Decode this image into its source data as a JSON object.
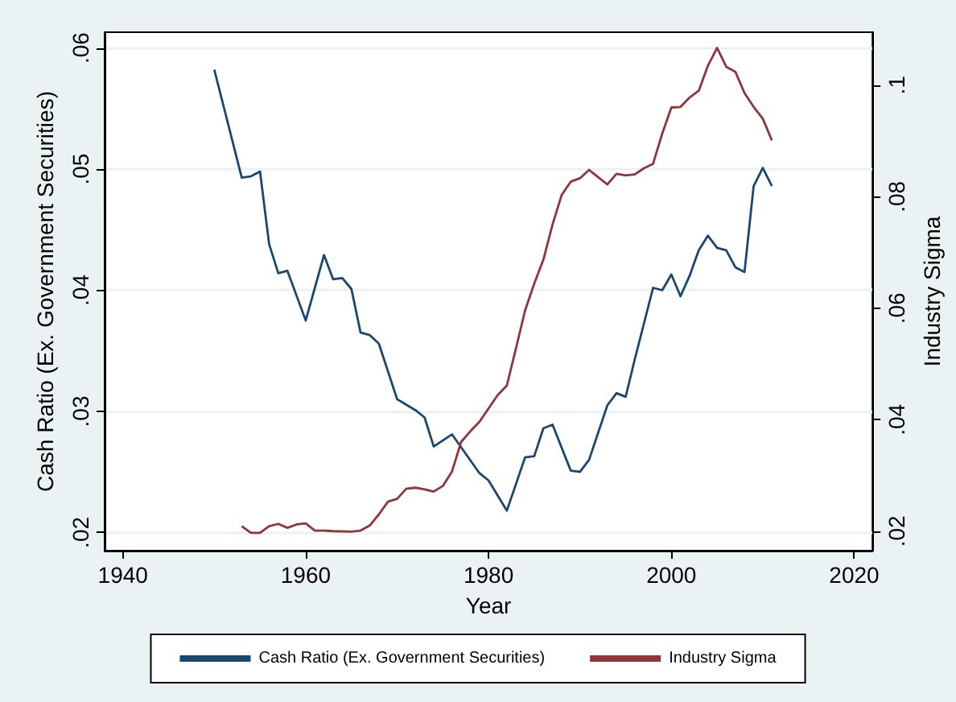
{
  "chart_data": {
    "type": "line",
    "xlabel": "Year",
    "ylabel": "Cash Ratio (Ex. Government Securities)",
    "y2label": "Industry Sigma",
    "xlim": [
      1938,
      2022
    ],
    "xticks": [
      1940,
      1960,
      1980,
      2000,
      2020
    ],
    "ylim": [
      0.0185,
      0.0613
    ],
    "yticks": [
      {
        "value": 0.02,
        "label": ".02"
      },
      {
        "value": 0.03,
        "label": ".03"
      },
      {
        "value": 0.04,
        "label": ".04"
      },
      {
        "value": 0.05,
        "label": ".05"
      },
      {
        "value": 0.06,
        "label": ".06"
      }
    ],
    "y2lim": [
      0.0165,
      0.1095
    ],
    "y2ticks": [
      {
        "value": 0.02,
        "label": ".02"
      },
      {
        "value": 0.04,
        "label": ".04"
      },
      {
        "value": 0.06,
        "label": ".06"
      },
      {
        "value": 0.08,
        "label": ".08"
      },
      {
        "value": 0.1,
        "label": ".1"
      }
    ],
    "grid": "y",
    "legend": "bottom",
    "line_style": "solid",
    "marker": "none",
    "series": [
      {
        "name": "Cash Ratio (Ex. Government Securities)",
        "color": "#1a476f",
        "x": [
          1950,
          1953,
          1954,
          1955,
          1956,
          1957,
          1958,
          1960,
          1962,
          1963,
          1964,
          1965,
          1966,
          1967,
          1968,
          1970,
          1972,
          1973,
          1974,
          1976,
          1979,
          1980,
          1982,
          1984,
          1985,
          1986,
          1987,
          1989,
          1990,
          1991,
          1993,
          1994,
          1995,
          1996,
          1998,
          1999,
          2000,
          2001,
          2002,
          2003,
          2004,
          2005,
          2006,
          2007,
          2008,
          2009,
          2010,
          2011
        ],
        "values": [
          0.0582,
          0.0493,
          0.0494,
          0.0498,
          0.0438,
          0.0414,
          0.0416,
          0.0375,
          0.0429,
          0.0409,
          0.041,
          0.0401,
          0.0365,
          0.0363,
          0.0356,
          0.031,
          0.0301,
          0.0295,
          0.0271,
          0.0281,
          0.0249,
          0.0243,
          0.0218,
          0.0262,
          0.0263,
          0.0286,
          0.0289,
          0.0251,
          0.025,
          0.026,
          0.0305,
          0.0315,
          0.0312,
          0.0343,
          0.0402,
          0.04,
          0.0413,
          0.0395,
          0.0412,
          0.0433,
          0.0445,
          0.0435,
          0.0433,
          0.0419,
          0.0415,
          0.0486,
          0.0501,
          0.0486
        ]
      },
      {
        "name": "Industry Sigma",
        "color": "#90353b",
        "axis": "y2",
        "x": [
          1953,
          1954,
          1955,
          1956,
          1957,
          1958,
          1959,
          1960,
          1961,
          1962,
          1963,
          1965,
          1966,
          1967,
          1968,
          1969,
          1970,
          1971,
          1972,
          1973,
          1974,
          1975,
          1976,
          1977,
          1978,
          1979,
          1981,
          1982,
          1983,
          1984,
          1985,
          1986,
          1987,
          1988,
          1989,
          1990,
          1991,
          1992,
          1993,
          1994,
          1995,
          1996,
          1997,
          1998,
          1999,
          2000,
          2001,
          2002,
          2003,
          2004,
          2005,
          2006,
          2007,
          2008,
          2009,
          2010,
          2011
        ],
        "values": [
          0.0209,
          0.0197,
          0.0197,
          0.0209,
          0.0213,
          0.0206,
          0.0212,
          0.0214,
          0.0201,
          0.0201,
          0.02,
          0.0199,
          0.0201,
          0.021,
          0.023,
          0.0253,
          0.0258,
          0.0276,
          0.0278,
          0.0275,
          0.0271,
          0.0281,
          0.0307,
          0.036,
          0.0379,
          0.0396,
          0.0444,
          0.0461,
          0.0528,
          0.0596,
          0.0644,
          0.0687,
          0.075,
          0.0803,
          0.0827,
          0.0833,
          0.0848,
          0.0835,
          0.0822,
          0.0841,
          0.0838,
          0.084,
          0.0851,
          0.0859,
          0.0913,
          0.096,
          0.0961,
          0.0978,
          0.099,
          0.1035,
          0.1067,
          0.1033,
          0.1024,
          0.0986,
          0.0961,
          0.094,
          0.0901
        ]
      }
    ]
  }
}
